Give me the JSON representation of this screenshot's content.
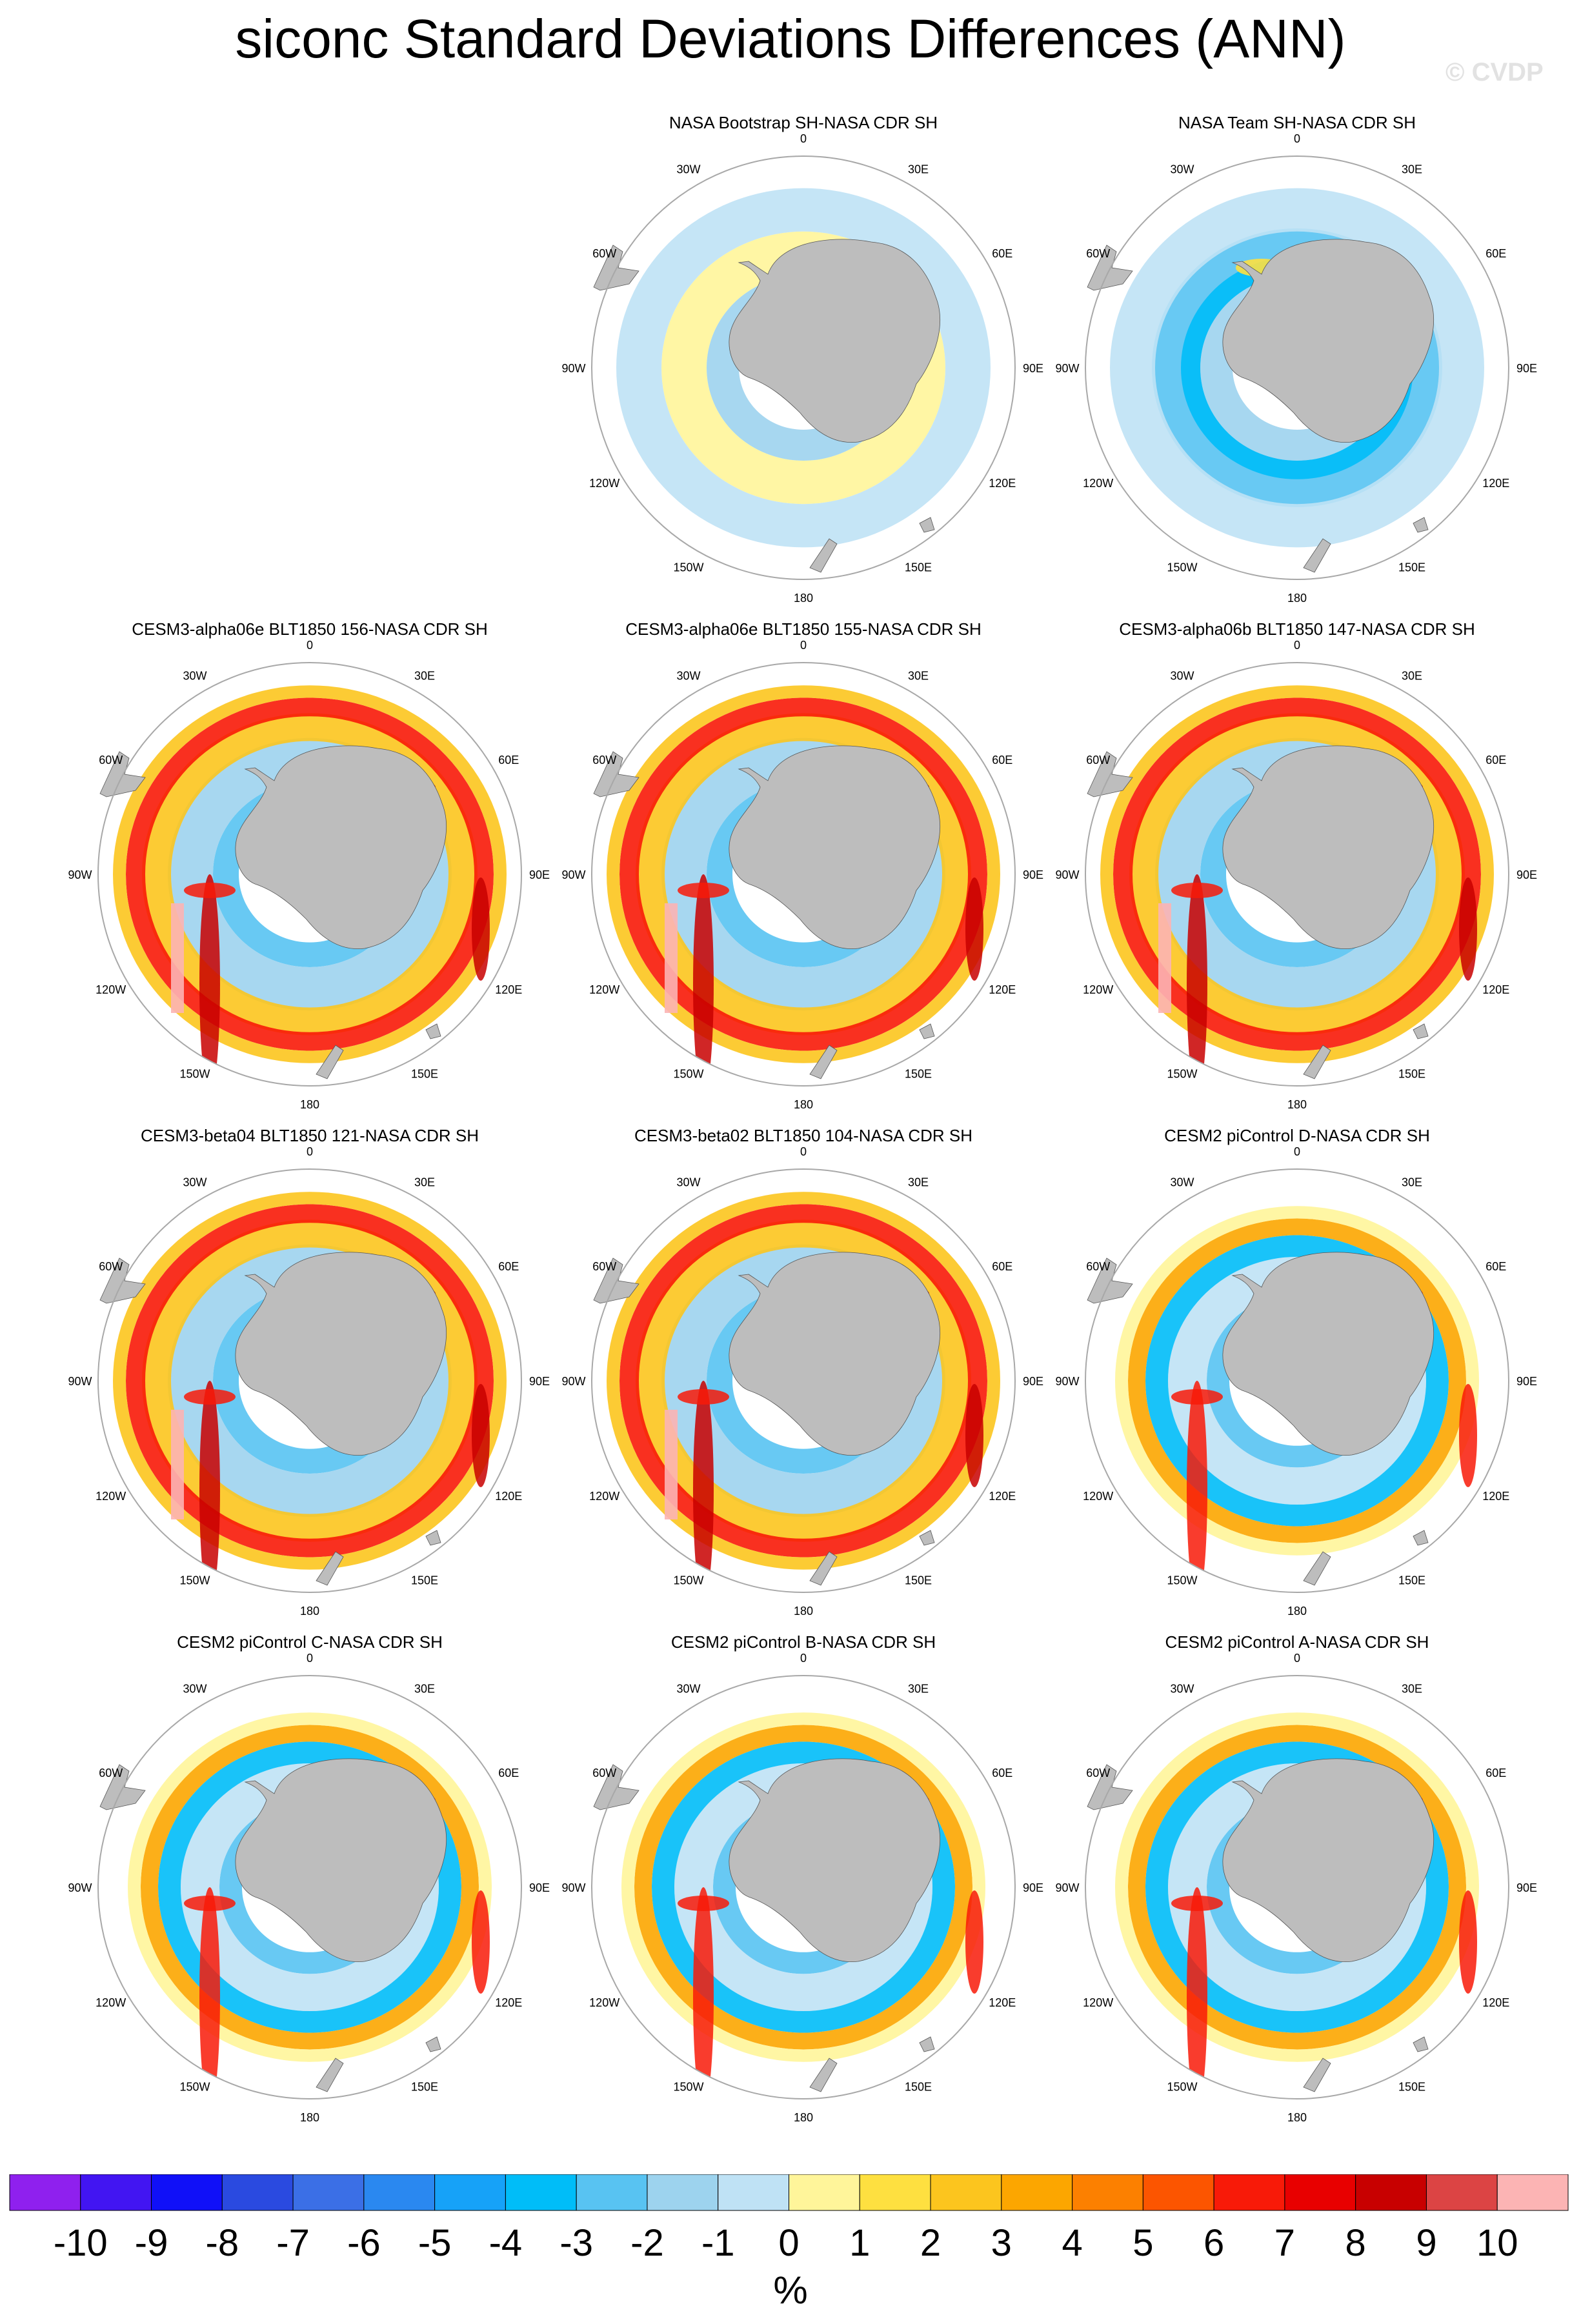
{
  "figure": {
    "title": "siconc Standard Deviations Differences (ANN)",
    "watermark": "© CVDP"
  },
  "chart_data": {
    "type": "heatmap",
    "projection": "south polar stereographic",
    "longitude_labels": [
      "0",
      "30E",
      "60E",
      "90E",
      "120E",
      "150E",
      "180",
      "150W",
      "120W",
      "90W",
      "60W",
      "30W"
    ],
    "colorbar": {
      "tick_labels": [
        "-10",
        "-9",
        "-8",
        "-7",
        "-6",
        "-5",
        "-4",
        "-3",
        "-2",
        "-1",
        "0",
        "1",
        "2",
        "3",
        "4",
        "5",
        "6",
        "7",
        "8",
        "9",
        "10"
      ],
      "colors": [
        "#8f20ee",
        "#4215f2",
        "#1010f8",
        "#2a4ae0",
        "#3b6fe6",
        "#2a88f0",
        "#16a2f8",
        "#00bdf8",
        "#58c3f2",
        "#9dd3ee",
        "#bfe2f5",
        "#fff59a",
        "#fee040",
        "#fcc51e",
        "#fca600",
        "#fc8000",
        "#fc5500",
        "#f81a08",
        "#e80000",
        "#c80000",
        "#dc4444",
        "#fcb4b4"
      ],
      "units": "%"
    },
    "panels": [
      {
        "title": "NASA Bootstrap SH-NASA CDR SH",
        "row": 0,
        "col": 1,
        "style": "obs-small"
      },
      {
        "title": "NASA Team SH-NASA CDR SH",
        "row": 0,
        "col": 2,
        "style": "obs-negative"
      },
      {
        "title": "CESM3-alpha06e BLT1850 156-NASA CDR SH",
        "row": 1,
        "col": 0,
        "style": "model-strong"
      },
      {
        "title": "CESM3-alpha06e BLT1850 155-NASA CDR SH",
        "row": 1,
        "col": 1,
        "style": "model-strong"
      },
      {
        "title": "CESM3-alpha06b BLT1850 147-NASA CDR SH",
        "row": 1,
        "col": 2,
        "style": "model-strong"
      },
      {
        "title": "CESM3-beta04 BLT1850 121-NASA CDR SH",
        "row": 2,
        "col": 0,
        "style": "model-strong"
      },
      {
        "title": "CESM3-beta02 BLT1850 104-NASA CDR SH",
        "row": 2,
        "col": 1,
        "style": "model-strong"
      },
      {
        "title": "CESM2 piControl D-NASA CDR SH",
        "row": 2,
        "col": 2,
        "style": "model-moderate"
      },
      {
        "title": "CESM2 piControl C-NASA CDR SH",
        "row": 3,
        "col": 0,
        "style": "model-moderate"
      },
      {
        "title": "CESM2 piControl B-NASA CDR SH",
        "row": 3,
        "col": 1,
        "style": "model-moderate"
      },
      {
        "title": "CESM2 piControl A-NASA CDR SH",
        "row": 3,
        "col": 2,
        "style": "model-moderate"
      }
    ]
  }
}
